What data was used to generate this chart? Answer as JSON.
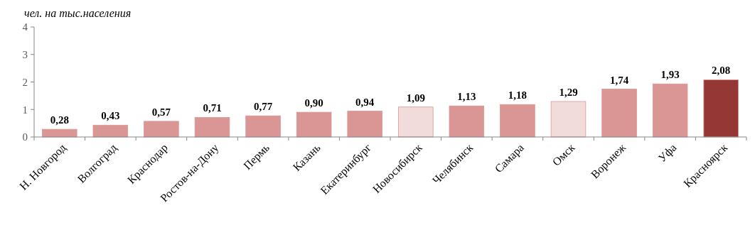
{
  "chart_data": {
    "type": "bar",
    "ylabel": "чел. на тыс.населения",
    "categories": [
      "Н. Новгород",
      "Волгоград",
      "Краснодар",
      "Ростов-на-Дону",
      "Пермь",
      "Казань",
      "Екатеринбург",
      "Новосибирск",
      "Челябинск",
      "Самара",
      "Омск",
      "Воронеж",
      "Уфа",
      "Красноярск"
    ],
    "values": [
      0.28,
      0.43,
      0.57,
      0.71,
      0.77,
      0.9,
      0.94,
      1.09,
      1.13,
      1.18,
      1.29,
      1.74,
      1.93,
      2.08
    ],
    "value_labels": [
      "0,28",
      "0,43",
      "0,57",
      "0,71",
      "0,77",
      "0,90",
      "0,94",
      "1,09",
      "1,13",
      "1,18",
      "1,29",
      "1,74",
      "1,93",
      "2,08"
    ],
    "colors": [
      "#d99694",
      "#d99694",
      "#d99694",
      "#d99694",
      "#d99694",
      "#d99694",
      "#d99694",
      "#f2dcdb",
      "#d99694",
      "#d99694",
      "#f2dcdb",
      "#d99694",
      "#d99694",
      "#953735"
    ],
    "ylim": [
      0,
      4
    ],
    "yticks": [
      0,
      1,
      2,
      3,
      4
    ],
    "grid": false
  }
}
